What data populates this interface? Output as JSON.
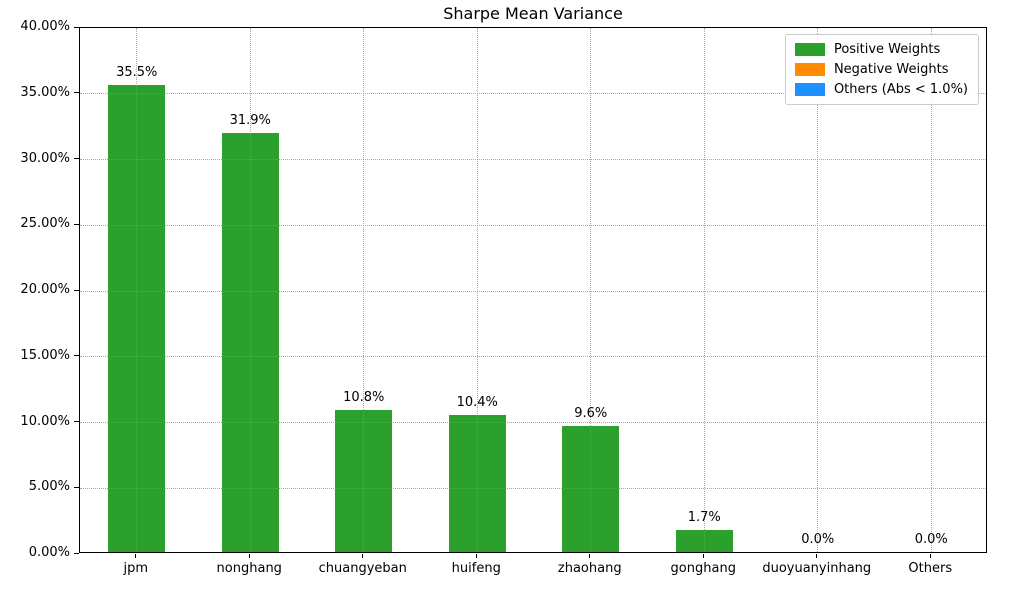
{
  "chart_data": {
    "type": "bar",
    "title": "Sharpe Mean Variance",
    "categories": [
      "jpm",
      "nonghang",
      "chuangyeban",
      "huifeng",
      "zhaohang",
      "gonghang",
      "duoyuanyinhang",
      "Others"
    ],
    "series": [
      {
        "name": "Positive Weights",
        "color": "#2ca02c",
        "values": [
          35.5,
          31.9,
          10.8,
          10.4,
          9.6,
          1.7,
          0.0,
          0.0
        ]
      }
    ],
    "value_labels": [
      "35.5%",
      "31.9%",
      "10.8%",
      "10.4%",
      "9.6%",
      "1.7%",
      "0.0%",
      "0.0%"
    ],
    "xlabel": "",
    "ylabel": "",
    "ylim": [
      0,
      40
    ],
    "yticks": [
      {
        "value": 0,
        "label": "0.00%"
      },
      {
        "value": 5,
        "label": "5.00%"
      },
      {
        "value": 10,
        "label": "10.00%"
      },
      {
        "value": 15,
        "label": "15.00%"
      },
      {
        "value": 20,
        "label": "20.00%"
      },
      {
        "value": 25,
        "label": "25.00%"
      },
      {
        "value": 30,
        "label": "30.00%"
      },
      {
        "value": 35,
        "label": "35.00%"
      },
      {
        "value": 40,
        "label": "40.00%"
      }
    ],
    "grid": {
      "on": true,
      "style": "dotted",
      "color": "#8c8c8c"
    },
    "legend": {
      "position": "upper right",
      "items": [
        {
          "label": "Positive Weights",
          "color": "#2ca02c"
        },
        {
          "label": "Negative Weights",
          "color": "#ff8c00"
        },
        {
          "label": "Others (Abs < 1.0%)",
          "color": "#1e90ff"
        }
      ]
    }
  }
}
